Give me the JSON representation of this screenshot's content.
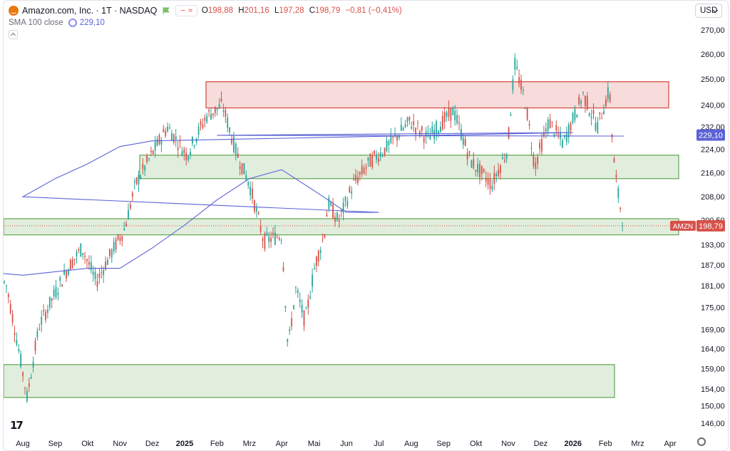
{
  "header": {
    "title": "Amazon.com, Inc. · 1T · NASDAQ",
    "ohlc": [
      {
        "key": "O",
        "value": "198,88"
      },
      {
        "key": "H",
        "value": "201,16"
      },
      {
        "key": "L",
        "value": "197,28"
      },
      {
        "key": "C",
        "value": "198,79"
      }
    ],
    "change": "−0,81 (−0,41%)"
  },
  "indicator": {
    "label": "SMA 100 close",
    "value": "229,10"
  },
  "currency": "USD",
  "colors": {
    "up": "#26a69a",
    "down": "#d7514a",
    "sma": "#5b63d6",
    "zone_red": "#d7514a",
    "zone_green": "#6aaa5a"
  },
  "chart_data": {
    "type": "line",
    "title": "",
    "xlabel": "",
    "ylabel": "",
    "ylim": [
      144,
      276
    ],
    "yscale": "log",
    "y_ticks": [
      "146,00",
      "150,00",
      "154,00",
      "159,00",
      "164,00",
      "169,00",
      "175,00",
      "181,00",
      "187,00",
      "193,00",
      "200,50",
      "208,00",
      "216,00",
      "224,00",
      "232,00",
      "240,00",
      "250,00",
      "260,00",
      "270,00"
    ],
    "x_ticks": [
      "Aug",
      "Sep",
      "Okt",
      "Nov",
      "Dez",
      "2025",
      "Feb",
      "Mrz",
      "Apr",
      "Mai",
      "Jun",
      "Jul",
      "Aug",
      "Sep",
      "Okt",
      "Nov",
      "Dez",
      "2026",
      "Feb",
      "Mrz",
      "Apr"
    ],
    "x_bold": [
      "2025",
      "2026"
    ],
    "series": [
      {
        "name": "",
        "x": [
          "Aug",
          "Sep",
          "Okt",
          "Nov",
          "Dez",
          "2025",
          "Feb",
          "Mrz",
          "Apr",
          "Mai",
          "Jun",
          "Jul",
          "Aug",
          "Sep",
          "Okt",
          "Nov",
          "Dez",
          "2026",
          "Feb"
        ],
        "values": [
          180,
          176,
          186,
          196,
          219,
          222,
          238,
          216,
          190,
          187,
          206,
          219,
          226,
          234,
          220,
          246,
          227,
          238,
          199
        ]
      },
      {
        "name": "SMA 100 close",
        "x": [
          "Aug",
          "Sep",
          "Okt",
          "Nov",
          "Dez",
          "2025",
          "Feb",
          "Mrz",
          "Apr",
          "Mai",
          "Jun",
          "Jul",
          "Aug",
          "Sep",
          "Okt",
          "Nov",
          "Dez",
          "2026",
          "Feb"
        ],
        "values": [
          184,
          185,
          186,
          186,
          192,
          199,
          207,
          214,
          217,
          210,
          203,
          203,
          208,
          214,
          219,
          225,
          227,
          230,
          229
        ]
      }
    ],
    "zones": [
      {
        "type": "resistance",
        "low": 239,
        "high": 249
      },
      {
        "type": "support",
        "low": 214,
        "high": 222
      },
      {
        "type": "support",
        "low": 196,
        "high": 201
      },
      {
        "type": "support",
        "low": 152,
        "high": 160
      }
    ],
    "price_label": {
      "symbol": "AMZN",
      "value": "198,79"
    },
    "sma_label": {
      "value": "229,10"
    }
  }
}
